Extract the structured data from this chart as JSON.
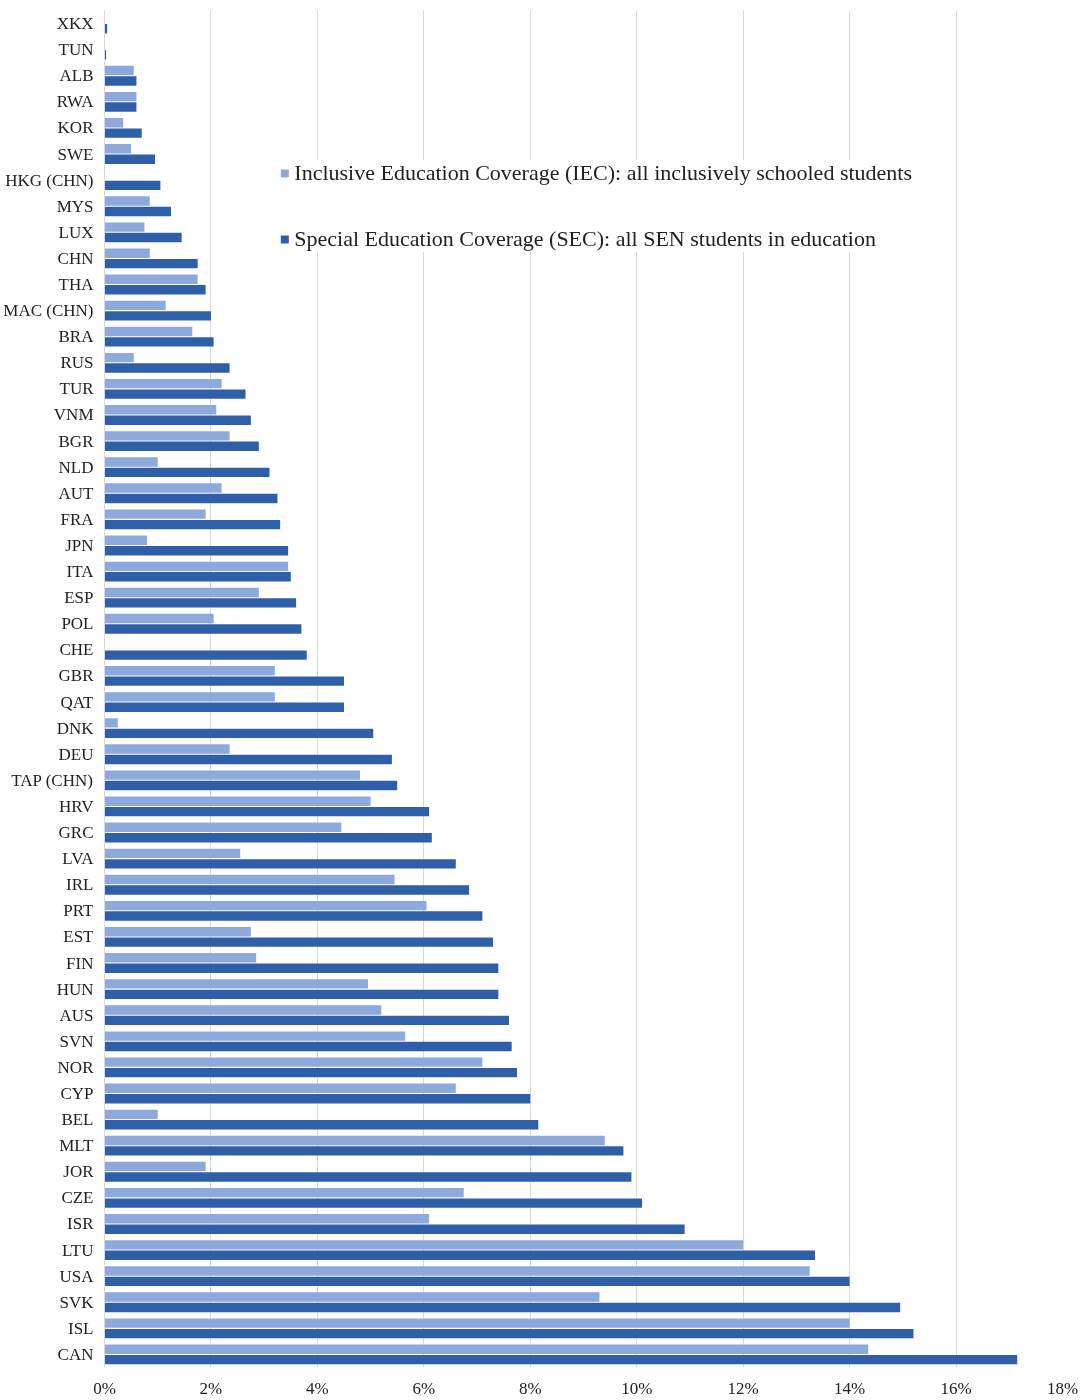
{
  "chart_data": {
    "type": "bar",
    "orientation": "horizontal",
    "categories": [
      "XKX",
      "TUN",
      "ALB",
      "RWA",
      "KOR",
      "SWE",
      "HKG (CHN)",
      "MYS",
      "LUX",
      "CHN",
      "THA",
      "MAC (CHN)",
      "BRA",
      "RUS",
      "TUR",
      "VNM",
      "BGR",
      "NLD",
      "AUT",
      "FRA",
      "JPN",
      "ITA",
      "ESP",
      "POL",
      "CHE",
      "GBR",
      "QAT",
      "DNK",
      "DEU",
      "TAP (CHN)",
      "HRV",
      "GRC",
      "LVA",
      "IRL",
      "PRT",
      "EST",
      "FIN",
      "HUN",
      "AUS",
      "SVN",
      "NOR",
      "CYP",
      "BEL",
      "MLT",
      "JOR",
      "CZE",
      "ISR",
      "LTU",
      "USA",
      "SVK",
      "ISL",
      "CAN"
    ],
    "series": [
      {
        "name": "Inclusive Education Coverage (IEC): all inclusively schooled students",
        "color": "#8eaadc",
        "values": [
          0,
          0,
          0.55,
          0.6,
          0.35,
          0.5,
          0,
          0.85,
          0.75,
          0.85,
          1.75,
          1.15,
          1.65,
          0.55,
          2.2,
          2.1,
          2.35,
          1.0,
          2.2,
          1.9,
          0.8,
          3.45,
          2.9,
          2.05,
          0,
          3.2,
          3.2,
          0.25,
          2.35,
          4.8,
          5.0,
          4.45,
          2.55,
          5.45,
          6.05,
          2.75,
          2.85,
          4.95,
          5.2,
          5.65,
          7.1,
          6.6,
          1.0,
          9.4,
          1.9,
          6.75,
          6.1,
          12.0,
          13.25,
          9.3,
          14.0,
          14.35
        ]
      },
      {
        "name": "Special Education Coverage (SEC): all SEN students in education",
        "color": "#2f5fa9",
        "values": [
          0.05,
          0.03,
          0.6,
          0.6,
          0.7,
          0.95,
          1.05,
          1.25,
          1.45,
          1.75,
          1.9,
          2.0,
          2.05,
          2.35,
          2.65,
          2.75,
          2.9,
          3.1,
          3.25,
          3.3,
          3.45,
          3.5,
          3.6,
          3.7,
          3.8,
          4.5,
          4.5,
          5.05,
          5.4,
          5.5,
          6.1,
          6.15,
          6.6,
          6.85,
          7.1,
          7.3,
          7.4,
          7.4,
          7.6,
          7.65,
          7.75,
          8.0,
          8.15,
          9.75,
          9.9,
          10.1,
          10.9,
          13.35,
          14.0,
          14.95,
          15.2,
          17.15
        ]
      }
    ],
    "xlim": [
      0,
      18
    ],
    "xticks": [
      {
        "value": 0,
        "label": "0%"
      },
      {
        "value": 2,
        "label": "2%"
      },
      {
        "value": 4,
        "label": "4%"
      },
      {
        "value": 6,
        "label": "6%"
      },
      {
        "value": 8,
        "label": "8%"
      },
      {
        "value": 10,
        "label": "10%"
      },
      {
        "value": 12,
        "label": "12%"
      },
      {
        "value": 14,
        "label": "14%"
      },
      {
        "value": 16,
        "label": "16%"
      },
      {
        "value": 18,
        "label": "18%"
      }
    ],
    "grid": "x",
    "legend": "top right"
  }
}
